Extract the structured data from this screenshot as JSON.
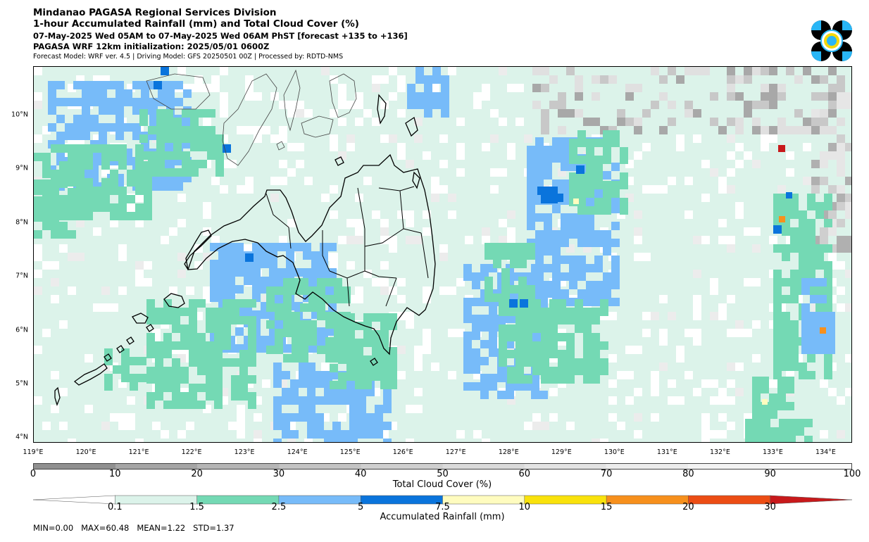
{
  "header": {
    "line1": "Mindanao PAGASA Regional Services Division",
    "line2": "1-hour Accumulated Rainfall (mm) and Total Cloud Cover (%)",
    "line3": "07-May-2025 Wed 05AM to 07-May-2025 Wed 06AM PhST [forecast +135 to +136]",
    "line4": "PAGASA WRF 12km initialization: 2025/05/01 0600Z",
    "line5": "Forecast Model: WRF ver. 4.5 | Driving Model: GFS 20250501 00Z | Processed by: RDTD-NMS"
  },
  "logo": {
    "icon": "pagasa-logo-icon",
    "colors": [
      "#000000",
      "#29b6f6",
      "#f5d90a"
    ]
  },
  "map": {
    "extent": {
      "lon": [
        119.0,
        134.5
      ],
      "lat": [
        3.9,
        10.9
      ]
    },
    "lat_ticks": [
      "10°N",
      "9°N",
      "8°N",
      "7°N",
      "6°N",
      "5°N",
      "4°N"
    ],
    "lat_values": [
      10,
      9,
      8,
      7,
      6,
      5,
      4
    ],
    "lon_ticks": [
      "119°E",
      "120°E",
      "121°E",
      "122°E",
      "123°E",
      "124°E",
      "125°E",
      "126°E",
      "127°E",
      "128°E",
      "129°E",
      "130°E",
      "131°E",
      "132°E",
      "133°E",
      "134°E"
    ],
    "lon_values": [
      119,
      120,
      121,
      122,
      123,
      124,
      125,
      126,
      127,
      128,
      129,
      130,
      131,
      132,
      133,
      134
    ]
  },
  "cloud_cover_bar": {
    "label": "Total Cloud Cover (%)",
    "ticks": [
      "0",
      "10",
      "20",
      "30",
      "40",
      "50",
      "60",
      "70",
      "80",
      "90",
      "100"
    ],
    "colors": [
      "#909090",
      "#a5a5a5",
      "#b5b5b5",
      "#c3c3c3",
      "#cfcfcf",
      "#dadada",
      "#e3e3e3",
      "#ececec",
      "#f3f3f3",
      "#fafafa"
    ]
  },
  "rainfall_bar": {
    "label": "Accumulated Rainfall (mm)",
    "ticks": [
      "0.1",
      "1.5",
      "2.5",
      "5",
      "7.5",
      "10",
      "15",
      "20",
      "30"
    ],
    "colors": [
      "#ffffff",
      "#dcf3ea",
      "#74d9b4",
      "#77bbf9",
      "#0a74dc",
      "#fffcbf",
      "#f9e20c",
      "#f7901c",
      "#ec4d14",
      "#c8191b"
    ]
  },
  "stats": "MIN=0.00   MAX=60.48   MEAN=1.22   STD=1.37"
}
